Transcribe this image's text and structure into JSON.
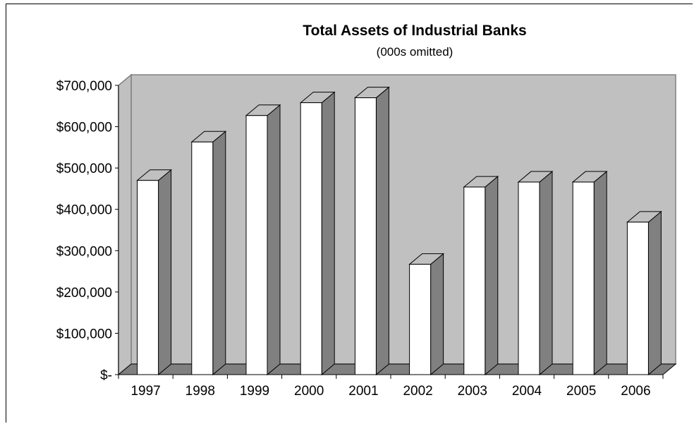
{
  "chart_data": {
    "type": "bar",
    "title": "Total Assets of Industrial Banks",
    "subtitle": "(000s omitted)",
    "xlabel": "",
    "ylabel": "",
    "categories": [
      "1997",
      "1998",
      "1999",
      "2000",
      "2001",
      "2002",
      "2003",
      "2004",
      "2005",
      "2006"
    ],
    "values": [
      470000,
      563000,
      627000,
      658000,
      670000,
      267000,
      454000,
      466000,
      466000,
      369000
    ],
    "ylim": [
      0,
      700000
    ],
    "yticks": [
      0,
      100000,
      200000,
      300000,
      400000,
      500000,
      600000,
      700000
    ],
    "ytick_labels": [
      "$-",
      "$100,000",
      "$200,000",
      "$300,000",
      "$400,000",
      "$500,000",
      "$600,000",
      "$700,000"
    ],
    "style": "3d-column",
    "grid": false,
    "legend": "none",
    "colors": {
      "bar_front": "#ffffff",
      "bar_side": "#808080",
      "bar_top": "#c0c0c0",
      "back_wall": "#c0c0c0",
      "floor": "#808080",
      "outline": "#000000"
    }
  }
}
